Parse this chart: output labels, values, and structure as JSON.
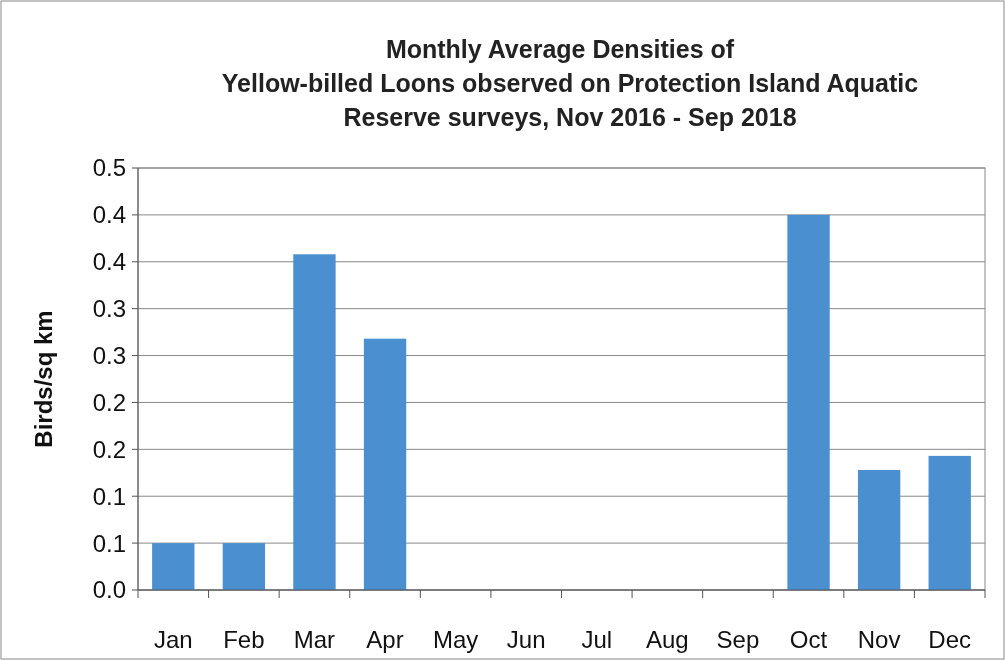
{
  "chart_data": {
    "type": "bar",
    "title": "Monthly Average Densities of\nYellow-billed Loons observed on Protection Island Aquatic\nReserve surveys, Nov 2016 - Sep 2018",
    "ylabel": "Birds/sq km",
    "categories": [
      "Jan",
      "Feb",
      "Mar",
      "Apr",
      "May",
      "Jun",
      "Jul",
      "Aug",
      "Sep",
      "Oct",
      "Nov",
      "Dec"
    ],
    "values": [
      0.05,
      0.05,
      0.358,
      0.268,
      0,
      0,
      0,
      0,
      0,
      0.4,
      0.128,
      0.143
    ],
    "color": "#4a8fd0",
    "ylim": [
      0,
      0.45
    ],
    "yticks": [
      {
        "value": 0,
        "label": "0.0"
      },
      {
        "value": 0.05,
        "label": "0.1"
      },
      {
        "value": 0.1,
        "label": "0.1"
      },
      {
        "value": 0.15,
        "label": "0.2"
      },
      {
        "value": 0.2,
        "label": "0.2"
      },
      {
        "value": 0.25,
        "label": "0.3"
      },
      {
        "value": 0.3,
        "label": "0.3"
      },
      {
        "value": 0.35,
        "label": "0.4"
      },
      {
        "value": 0.4,
        "label": "0.4"
      },
      {
        "value": 0.45,
        "label": "0.5"
      }
    ],
    "grid": "y"
  }
}
